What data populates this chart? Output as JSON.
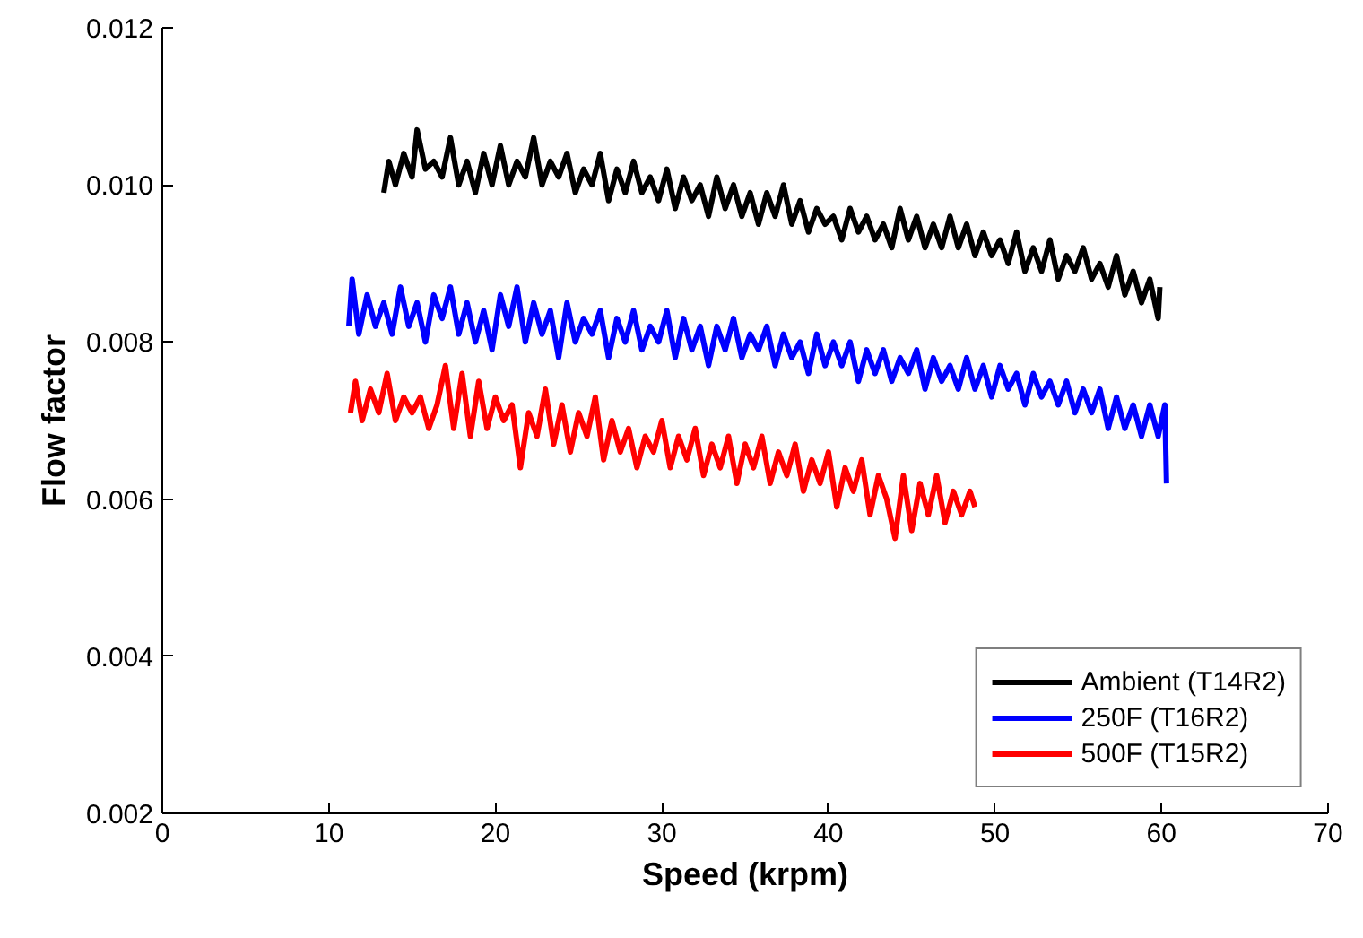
{
  "chart_data": {
    "type": "line",
    "xlabel": "Speed (krpm)",
    "ylabel": "Flow factor",
    "xlim": [
      0,
      70
    ],
    "ylim": [
      0.002,
      0.012
    ],
    "xticks": [
      0,
      10,
      20,
      30,
      40,
      50,
      60,
      70
    ],
    "yticks": [
      {
        "value": 0.002,
        "label": "0.002"
      },
      {
        "value": 0.004,
        "label": "0.004"
      },
      {
        "value": 0.006,
        "label": "0.006"
      },
      {
        "value": 0.008,
        "label": "0.008"
      },
      {
        "value": 0.01,
        "label": "0.010"
      },
      {
        "value": 0.012,
        "label": "0.012"
      }
    ],
    "grid": false,
    "legend": "bottom right",
    "marker": "none",
    "line_style": "solid",
    "series": [
      {
        "name": "Ambient (T14R2)",
        "color": "#000000",
        "x": [
          13.3,
          13.6,
          14.0,
          14.5,
          15.0,
          15.3,
          15.8,
          16.3,
          16.8,
          17.3,
          17.8,
          18.3,
          18.8,
          19.3,
          19.8,
          20.3,
          20.8,
          21.3,
          21.8,
          22.3,
          22.8,
          23.3,
          23.8,
          24.3,
          24.8,
          25.3,
          25.8,
          26.3,
          26.8,
          27.3,
          27.8,
          28.3,
          28.8,
          29.3,
          29.8,
          30.3,
          30.8,
          31.3,
          31.8,
          32.3,
          32.8,
          33.3,
          33.8,
          34.3,
          34.8,
          35.3,
          35.8,
          36.3,
          36.8,
          37.3,
          37.8,
          38.3,
          38.8,
          39.3,
          39.8,
          40.3,
          40.8,
          41.3,
          41.8,
          42.3,
          42.8,
          43.3,
          43.8,
          44.3,
          44.8,
          45.3,
          45.8,
          46.3,
          46.8,
          47.3,
          47.8,
          48.3,
          48.8,
          49.3,
          49.8,
          50.3,
          50.8,
          51.3,
          51.8,
          52.3,
          52.8,
          53.3,
          53.8,
          54.3,
          54.8,
          55.3,
          55.8,
          56.3,
          56.8,
          57.3,
          57.8,
          58.3,
          58.8,
          59.3,
          59.8,
          59.9
        ],
        "values": [
          0.0099,
          0.0103,
          0.01,
          0.0104,
          0.0101,
          0.0107,
          0.0102,
          0.0103,
          0.0101,
          0.0106,
          0.01,
          0.0103,
          0.0099,
          0.0104,
          0.01,
          0.0105,
          0.01,
          0.0103,
          0.0101,
          0.0106,
          0.01,
          0.0103,
          0.0101,
          0.0104,
          0.0099,
          0.0102,
          0.01,
          0.0104,
          0.0098,
          0.0102,
          0.0099,
          0.0103,
          0.0099,
          0.0101,
          0.0098,
          0.0102,
          0.0097,
          0.0101,
          0.0098,
          0.01,
          0.0096,
          0.0101,
          0.0097,
          0.01,
          0.0096,
          0.0099,
          0.0095,
          0.0099,
          0.0096,
          0.01,
          0.0095,
          0.0098,
          0.0094,
          0.0097,
          0.0095,
          0.0096,
          0.0093,
          0.0097,
          0.0094,
          0.0096,
          0.0093,
          0.0095,
          0.0092,
          0.0097,
          0.0093,
          0.0096,
          0.0092,
          0.0095,
          0.0092,
          0.0096,
          0.0092,
          0.0095,
          0.0091,
          0.0094,
          0.0091,
          0.0093,
          0.009,
          0.0094,
          0.0089,
          0.0092,
          0.0089,
          0.0093,
          0.0088,
          0.0091,
          0.0089,
          0.0092,
          0.0088,
          0.009,
          0.0087,
          0.0091,
          0.0086,
          0.0089,
          0.0085,
          0.0088,
          0.0083,
          0.0087
        ]
      },
      {
        "name": "250F (T16R2)",
        "color": "#0000ff",
        "x": [
          11.2,
          11.4,
          11.8,
          12.3,
          12.8,
          13.3,
          13.8,
          14.3,
          14.8,
          15.3,
          15.8,
          16.3,
          16.8,
          17.3,
          17.8,
          18.3,
          18.8,
          19.3,
          19.8,
          20.3,
          20.8,
          21.3,
          21.8,
          22.3,
          22.8,
          23.3,
          23.8,
          24.3,
          24.8,
          25.3,
          25.8,
          26.3,
          26.8,
          27.3,
          27.8,
          28.3,
          28.8,
          29.3,
          29.8,
          30.3,
          30.8,
          31.3,
          31.8,
          32.3,
          32.8,
          33.3,
          33.8,
          34.3,
          34.8,
          35.3,
          35.8,
          36.3,
          36.8,
          37.3,
          37.8,
          38.3,
          38.8,
          39.3,
          39.8,
          40.3,
          40.8,
          41.3,
          41.8,
          42.3,
          42.8,
          43.3,
          43.8,
          44.3,
          44.8,
          45.3,
          45.8,
          46.3,
          46.8,
          47.3,
          47.8,
          48.3,
          48.8,
          49.3,
          49.8,
          50.3,
          50.8,
          51.3,
          51.8,
          52.3,
          52.8,
          53.3,
          53.8,
          54.3,
          54.8,
          55.3,
          55.8,
          56.3,
          56.8,
          57.3,
          57.8,
          58.3,
          58.8,
          59.3,
          59.8,
          60.2,
          60.3
        ],
        "values": [
          0.0082,
          0.0088,
          0.0081,
          0.0086,
          0.0082,
          0.0085,
          0.0081,
          0.0087,
          0.0082,
          0.0085,
          0.008,
          0.0086,
          0.0083,
          0.0087,
          0.0081,
          0.0085,
          0.008,
          0.0084,
          0.0079,
          0.0086,
          0.0082,
          0.0087,
          0.008,
          0.0085,
          0.0081,
          0.0084,
          0.0078,
          0.0085,
          0.008,
          0.0083,
          0.0081,
          0.0084,
          0.0078,
          0.0083,
          0.008,
          0.0084,
          0.0079,
          0.0082,
          0.008,
          0.0084,
          0.0078,
          0.0083,
          0.0079,
          0.0082,
          0.0077,
          0.0082,
          0.0079,
          0.0083,
          0.0078,
          0.0081,
          0.0079,
          0.0082,
          0.0077,
          0.0081,
          0.0078,
          0.008,
          0.0076,
          0.0081,
          0.0077,
          0.008,
          0.0077,
          0.008,
          0.0075,
          0.0079,
          0.0076,
          0.0079,
          0.0075,
          0.0078,
          0.0076,
          0.0079,
          0.0074,
          0.0078,
          0.0075,
          0.0077,
          0.0074,
          0.0078,
          0.0074,
          0.0077,
          0.0073,
          0.0077,
          0.0074,
          0.0076,
          0.0072,
          0.0076,
          0.0073,
          0.0075,
          0.0072,
          0.0075,
          0.0071,
          0.0074,
          0.0071,
          0.0074,
          0.0069,
          0.0073,
          0.0069,
          0.0072,
          0.0068,
          0.0072,
          0.0068,
          0.0072,
          0.0062
        ]
      },
      {
        "name": "500F (T15R2)",
        "color": "#ff0000",
        "x": [
          11.3,
          11.6,
          12.0,
          12.5,
          13.0,
          13.5,
          14.0,
          14.5,
          15.0,
          15.5,
          16.0,
          16.5,
          17.0,
          17.5,
          18.0,
          18.5,
          19.0,
          19.5,
          20.0,
          20.5,
          21.0,
          21.5,
          22.0,
          22.5,
          23.0,
          23.5,
          24.0,
          24.5,
          25.0,
          25.5,
          26.0,
          26.5,
          27.0,
          27.5,
          28.0,
          28.5,
          29.0,
          29.5,
          30.0,
          30.5,
          31.0,
          31.5,
          32.0,
          32.5,
          33.0,
          33.5,
          34.0,
          34.5,
          35.0,
          35.5,
          36.0,
          36.5,
          37.0,
          37.5,
          38.0,
          38.5,
          39.0,
          39.5,
          40.0,
          40.5,
          41.0,
          41.5,
          42.0,
          42.5,
          43.0,
          43.5,
          44.0,
          44.5,
          45.0,
          45.5,
          46.0,
          46.5,
          47.0,
          47.5,
          48.0,
          48.5,
          48.8
        ],
        "values": [
          0.0071,
          0.0075,
          0.007,
          0.0074,
          0.0071,
          0.0076,
          0.007,
          0.0073,
          0.0071,
          0.0073,
          0.0069,
          0.0072,
          0.0077,
          0.0069,
          0.0076,
          0.0068,
          0.0075,
          0.0069,
          0.0073,
          0.007,
          0.0072,
          0.0064,
          0.0071,
          0.0068,
          0.0074,
          0.0067,
          0.0072,
          0.0066,
          0.0071,
          0.0068,
          0.0073,
          0.0065,
          0.007,
          0.0066,
          0.0069,
          0.0064,
          0.0068,
          0.0066,
          0.007,
          0.0064,
          0.0068,
          0.0065,
          0.0069,
          0.0063,
          0.0067,
          0.0064,
          0.0068,
          0.0062,
          0.0067,
          0.0064,
          0.0068,
          0.0062,
          0.0066,
          0.0063,
          0.0067,
          0.0061,
          0.0065,
          0.0062,
          0.0066,
          0.0059,
          0.0064,
          0.0061,
          0.0065,
          0.0058,
          0.0063,
          0.006,
          0.0055,
          0.0063,
          0.0056,
          0.0062,
          0.0058,
          0.0063,
          0.0057,
          0.0061,
          0.0058,
          0.0061,
          0.0059
        ]
      }
    ]
  }
}
